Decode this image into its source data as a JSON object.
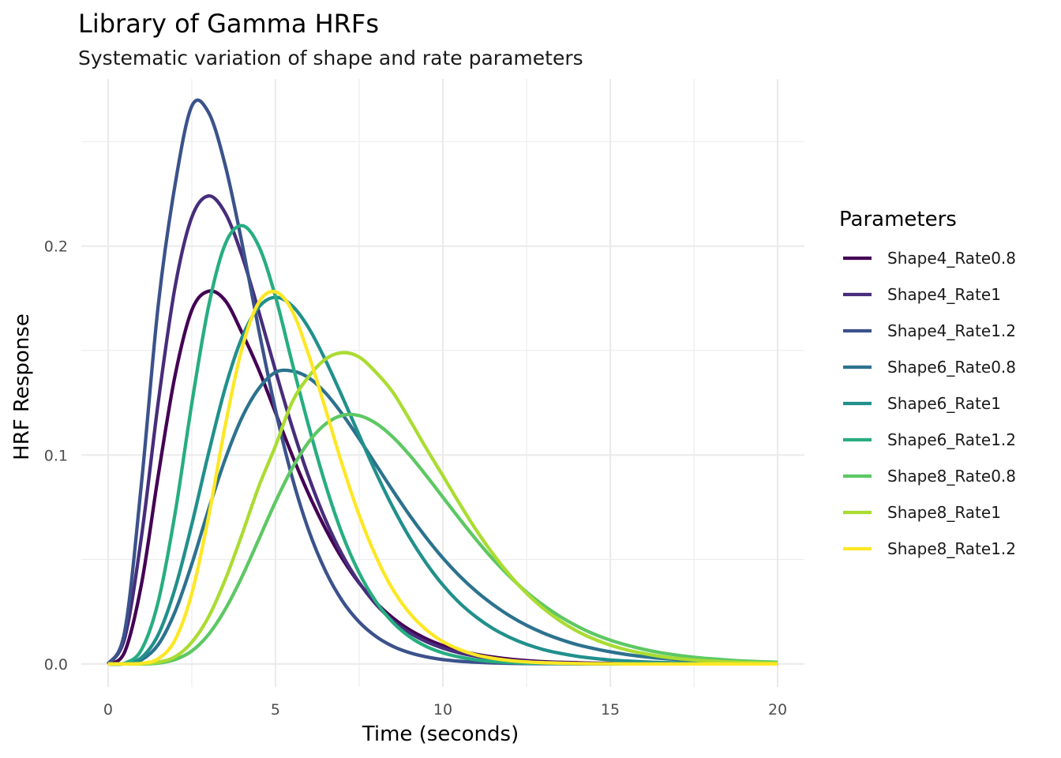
{
  "chart_data": {
    "type": "line",
    "title": "Library of Gamma HRFs",
    "subtitle": "Systematic variation of shape and rate parameters",
    "xlabel": "Time (seconds)",
    "ylabel": "HRF Response",
    "xlim": [
      -0.8,
      20.8
    ],
    "ylim": [
      -0.011,
      0.28
    ],
    "xticks": [
      0,
      5,
      10,
      15,
      20
    ],
    "xtick_labels": [
      "0",
      "5",
      "10",
      "15",
      "20"
    ],
    "yticks": [
      0.0,
      0.1,
      0.2
    ],
    "ytick_labels": [
      "0.0",
      "0.1",
      "0.2"
    ],
    "grid": true,
    "legend_position": "right",
    "legend_title": "Parameters",
    "x": [
      0,
      0.5,
      1,
      1.5,
      2,
      2.5,
      3,
      3.5,
      4,
      4.5,
      5,
      5.5,
      6,
      6.5,
      7,
      7.5,
      8,
      8.5,
      9,
      9.5,
      10,
      10.5,
      11,
      11.5,
      12,
      12.5,
      13,
      13.5,
      14,
      14.5,
      15,
      15.5,
      16,
      16.5,
      17,
      17.5,
      18,
      18.5,
      19,
      19.5,
      20
    ],
    "series": [
      {
        "name": "Shape4_Rate0.8",
        "color": "#440154",
        "values": [
          0,
          0.0059,
          0.0385,
          0.0904,
          0.138,
          0.1693,
          0.1784,
          0.1739,
          0.1585,
          0.1408,
          0.1203,
          0.0998,
          0.081,
          0.0645,
          0.0503,
          0.0387,
          0.0294,
          0.0221,
          0.0164,
          0.0121,
          0.0088,
          0.0064,
          0.0046,
          0.0033,
          0.0023,
          0.0016,
          0.0011,
          0.0008,
          0.0006,
          0.0004,
          0.0003,
          0.0002,
          0.0001,
          0.0001,
          0.0001,
          0,
          0,
          0,
          0,
          0,
          0
        ]
      },
      {
        "name": "Shape4_Rate1",
        "color": "#472D7B",
        "values": [
          0,
          0.0126,
          0.0613,
          0.1255,
          0.1804,
          0.2138,
          0.224,
          0.2158,
          0.1954,
          0.1687,
          0.1404,
          0.1133,
          0.0892,
          0.0688,
          0.0521,
          0.0389,
          0.0286,
          0.0208,
          0.015,
          0.0107,
          0.0076,
          0.0053,
          0.0037,
          0.0026,
          0.0018,
          0.0012,
          0.0008,
          0.0006,
          0.0004,
          0.0003,
          0.0002,
          0.0001,
          0.0001,
          0,
          0,
          0,
          0,
          0,
          0,
          0,
          0
        ]
      },
      {
        "name": "Shape4_Rate1.2",
        "color": "#3B528B",
        "values": [
          0,
          0.0159,
          0.087,
          0.172,
          0.2293,
          0.267,
          0.264,
          0.2386,
          0.2014,
          0.16,
          0.1216,
          0.0892,
          0.0636,
          0.0443,
          0.0301,
          0.0201,
          0.0132,
          0.0085,
          0.0054,
          0.0034,
          0.0021,
          0.0013,
          0.0008,
          0.0005,
          0.0003,
          0.0002,
          0.0001,
          0.0001,
          0,
          0,
          0,
          0,
          0,
          0,
          0,
          0,
          0,
          0,
          0,
          0,
          0
        ]
      },
      {
        "name": "Shape6_Rate0.8",
        "color": "#2C728E",
        "values": [
          0,
          0.0001,
          0.002,
          0.0093,
          0.025,
          0.0478,
          0.0739,
          0.0981,
          0.118,
          0.1318,
          0.1396,
          0.1402,
          0.1369,
          0.1296,
          0.1195,
          0.1078,
          0.0954,
          0.0831,
          0.0713,
          0.0605,
          0.0507,
          0.0421,
          0.0347,
          0.0284,
          0.023,
          0.0185,
          0.0148,
          0.0118,
          0.0093,
          0.0074,
          0.0058,
          0.0045,
          0.0035,
          0.0027,
          0.0021,
          0.0016,
          0.0012,
          0.0009,
          0.0007,
          0.0005,
          0.0004
        ]
      },
      {
        "name": "Shape6_Rate1",
        "color": "#21908C",
        "values": [
          0,
          0.0002,
          0.0031,
          0.0141,
          0.0361,
          0.0668,
          0.1008,
          0.1322,
          0.1563,
          0.1708,
          0.1755,
          0.1714,
          0.1606,
          0.1452,
          0.1277,
          0.1095,
          0.0916,
          0.0752,
          0.0607,
          0.0483,
          0.0378,
          0.0292,
          0.0224,
          0.0169,
          0.0127,
          0.0094,
          0.0069,
          0.0051,
          0.0037,
          0.0027,
          0.0019,
          0.0014,
          0.001,
          0.0007,
          0.0005,
          0.0003,
          0.0002,
          0.0002,
          0.0001,
          0.0001,
          0.0001
        ]
      },
      {
        "name": "Shape6_Rate1.2",
        "color": "#27AD81",
        "values": [
          0,
          0.0004,
          0.0069,
          0.03,
          0.072,
          0.1246,
          0.1711,
          0.201,
          0.2098,
          0.2,
          0.1758,
          0.144,
          0.1134,
          0.0855,
          0.0619,
          0.0436,
          0.0299,
          0.02,
          0.0131,
          0.0084,
          0.0053,
          0.0033,
          0.002,
          0.0012,
          0.0007,
          0.0004,
          0.0003,
          0.0002,
          0.0001,
          0.0001,
          0,
          0,
          0,
          0,
          0,
          0,
          0,
          0,
          0,
          0,
          0
        ]
      },
      {
        "name": "Shape8_Rate0.8",
        "color": "#5DC863",
        "values": [
          0,
          0,
          0,
          0.0004,
          0.0021,
          0.0062,
          0.0141,
          0.0262,
          0.0418,
          0.0596,
          0.0776,
          0.0937,
          0.1064,
          0.1149,
          0.119,
          0.1189,
          0.1152,
          0.1087,
          0.1001,
          0.0902,
          0.0798,
          0.0694,
          0.0594,
          0.0501,
          0.0418,
          0.0344,
          0.0281,
          0.0227,
          0.0182,
          0.0144,
          0.0114,
          0.009,
          0.007,
          0.0054,
          0.0042,
          0.0032,
          0.0025,
          0.0019,
          0.0014,
          0.0011,
          0.0008
        ]
      },
      {
        "name": "Shape8_Rate1",
        "color": "#AADC32",
        "values": [
          0,
          0,
          0.0001,
          0.0009,
          0.0034,
          0.0104,
          0.0225,
          0.0404,
          0.062,
          0.0849,
          0.1044,
          0.1254,
          0.1377,
          0.146,
          0.149,
          0.1469,
          0.1396,
          0.1302,
          0.1171,
          0.1033,
          0.0901,
          0.0767,
          0.064,
          0.0526,
          0.0425,
          0.0338,
          0.0266,
          0.0206,
          0.0158,
          0.012,
          0.009,
          0.0067,
          0.005,
          0.0036,
          0.0026,
          0.0019,
          0.0014,
          0.001,
          0.0007,
          0.0005,
          0.0003
        ]
      },
      {
        "name": "Shape8_Rate1.2",
        "color": "#FDE725",
        "values": [
          0,
          0,
          0.0003,
          0.0025,
          0.0115,
          0.0337,
          0.0703,
          0.1142,
          0.1511,
          0.173,
          0.1781,
          0.169,
          0.1475,
          0.1217,
          0.095,
          0.0712,
          0.0515,
          0.0358,
          0.0245,
          0.0164,
          0.0107,
          0.0069,
          0.0043,
          0.0027,
          0.0016,
          0.001,
          0.0006,
          0.0004,
          0.0002,
          0.0001,
          0.0001,
          0,
          0,
          0,
          0,
          0,
          0,
          0,
          0,
          0,
          0
        ]
      }
    ]
  }
}
